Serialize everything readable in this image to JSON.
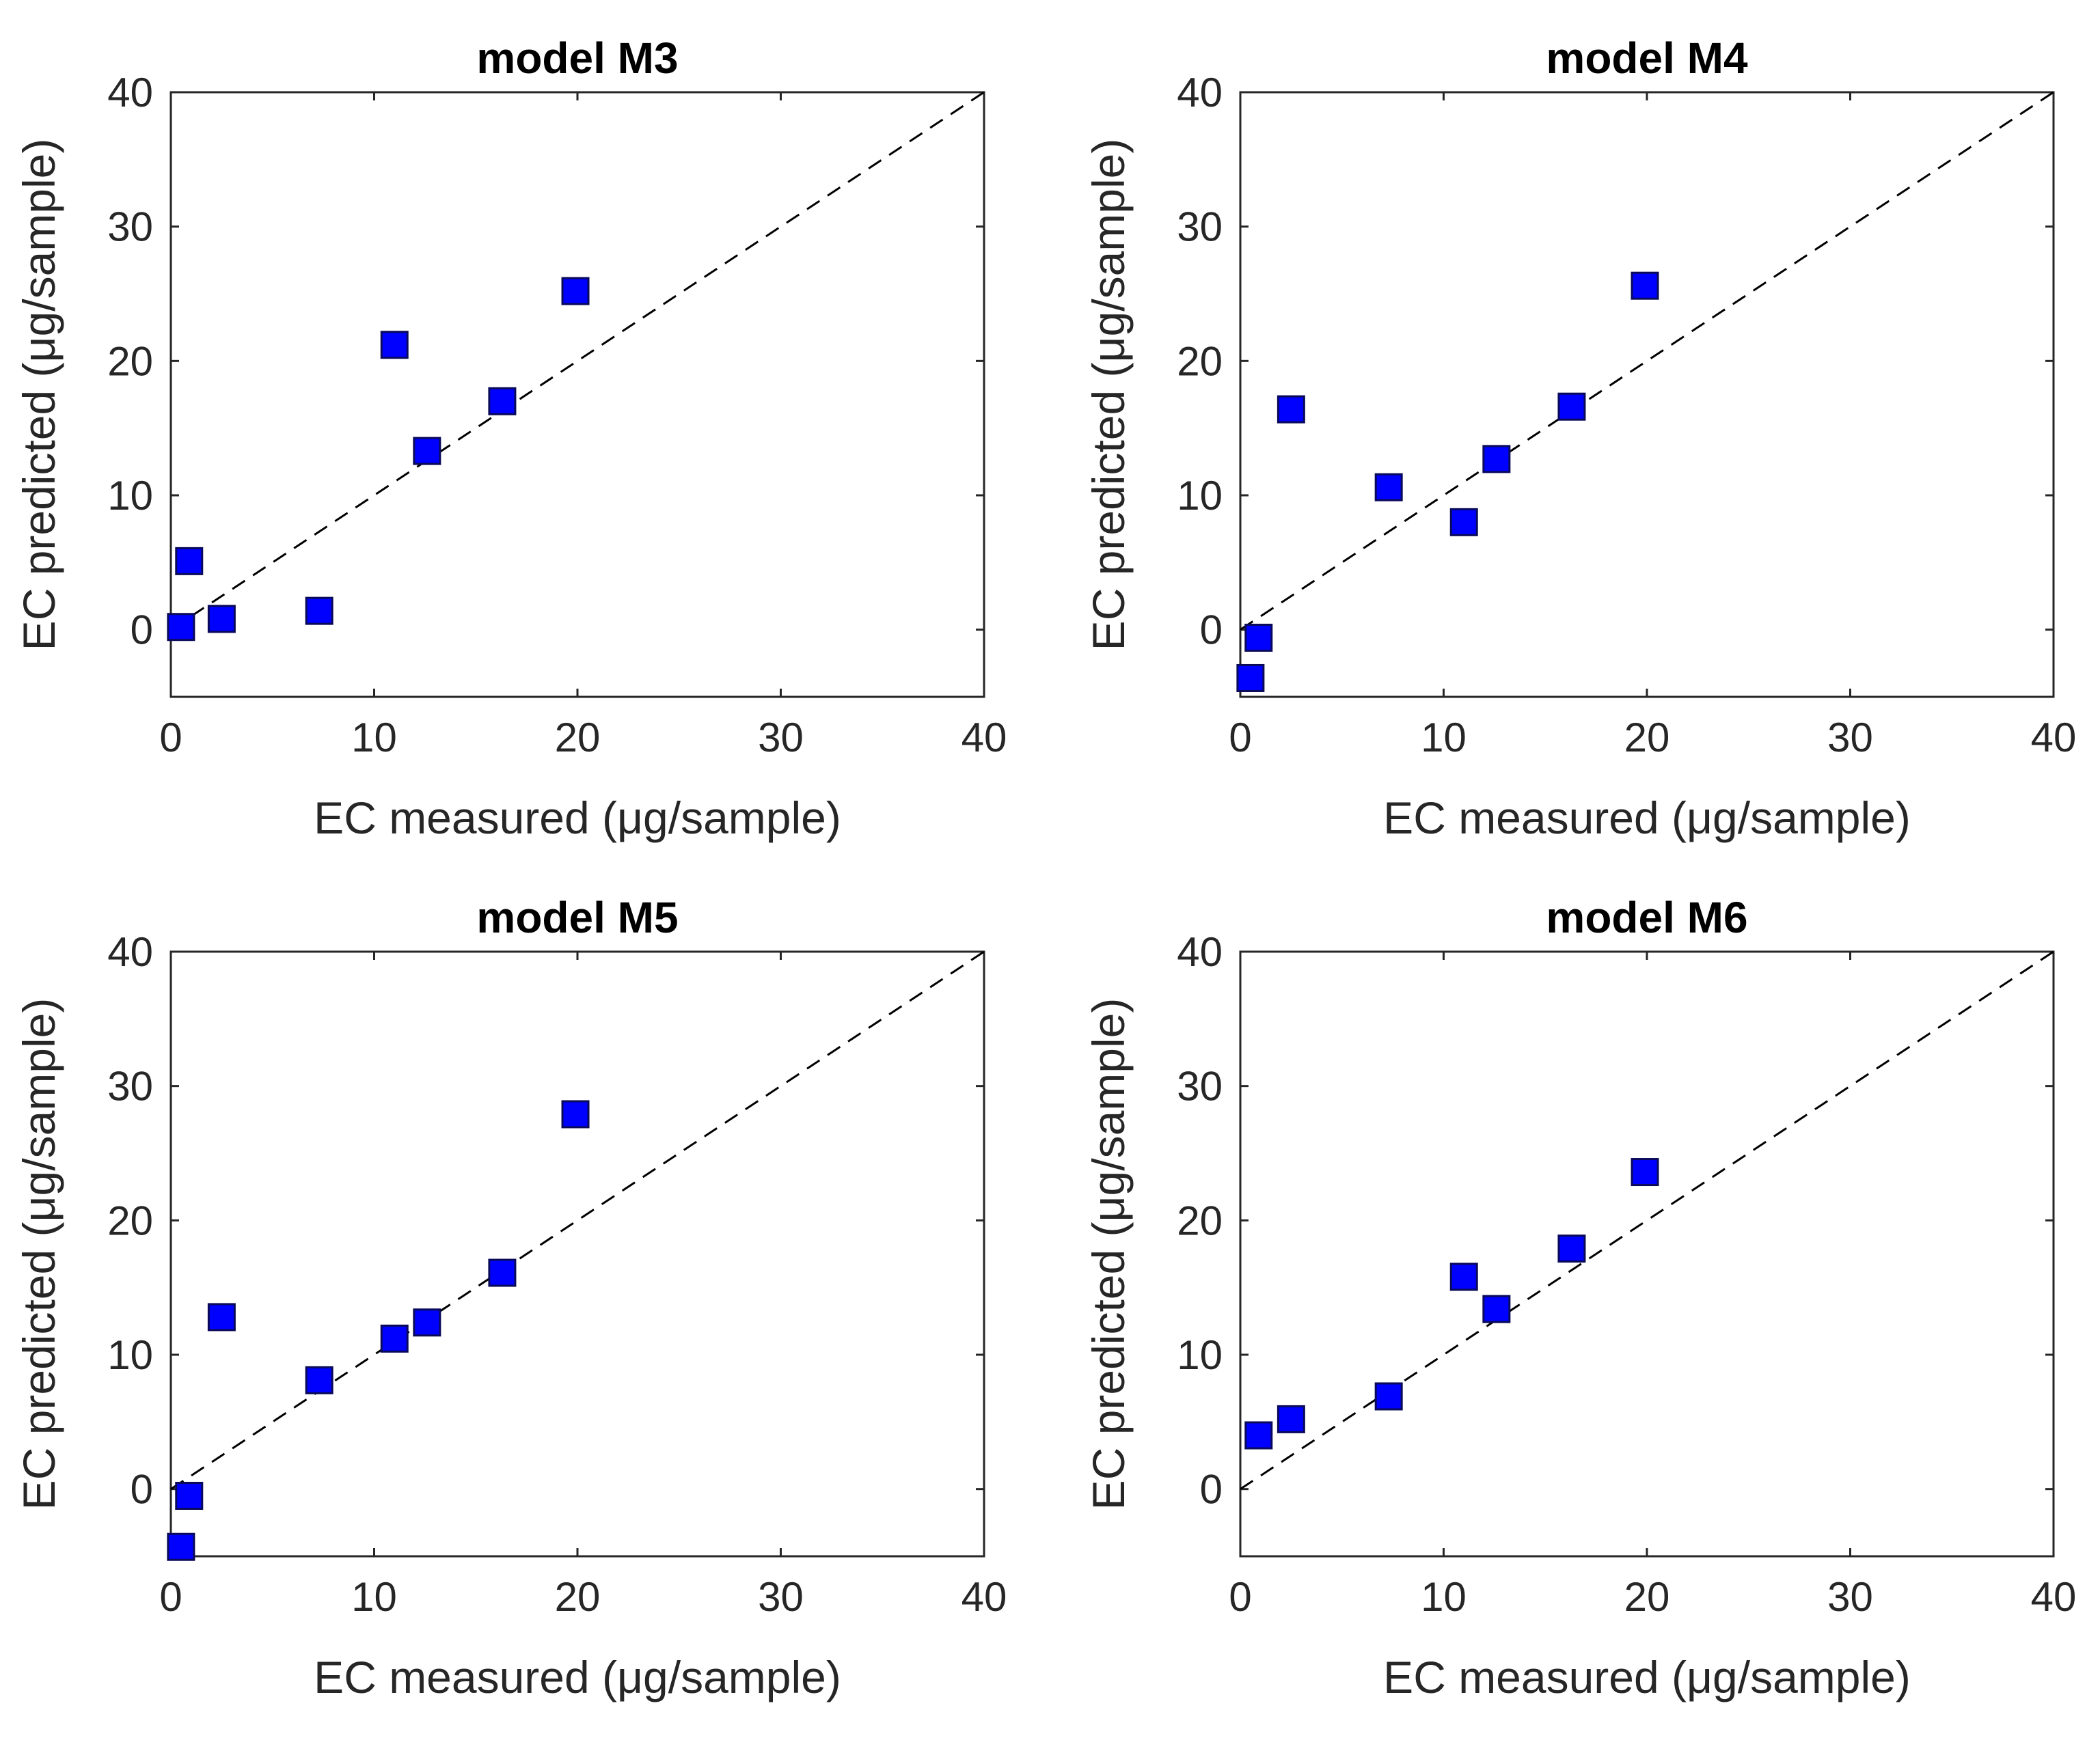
{
  "chart_data": [
    {
      "type": "scatter",
      "title": "model M3",
      "xlabel": "EC measured (μg/sample)",
      "ylabel": "EC predicted (μg/sample)",
      "xlim": [
        0,
        40
      ],
      "ylim": [
        -5,
        40
      ],
      "xticks": [
        "0",
        "10",
        "20",
        "30",
        "40"
      ],
      "yticks": [
        "0",
        "10",
        "20",
        "30",
        "40"
      ],
      "grid": false,
      "reference_line": "y = x",
      "points": [
        {
          "x": 0.5,
          "y": 0.2
        },
        {
          "x": 0.9,
          "y": 5.1
        },
        {
          "x": 2.5,
          "y": 0.8
        },
        {
          "x": 7.3,
          "y": 1.4
        },
        {
          "x": 11.0,
          "y": 21.2
        },
        {
          "x": 12.6,
          "y": 13.3
        },
        {
          "x": 16.3,
          "y": 17.0
        },
        {
          "x": 19.9,
          "y": 25.2
        }
      ]
    },
    {
      "type": "scatter",
      "title": "model M4",
      "xlabel": "EC measured (μg/sample)",
      "ylabel": "EC predicted (μg/sample)",
      "xlim": [
        0,
        40
      ],
      "ylim": [
        -5,
        40
      ],
      "xticks": [
        "0",
        "10",
        "20",
        "30",
        "40"
      ],
      "yticks": [
        "0",
        "10",
        "20",
        "30",
        "40"
      ],
      "grid": false,
      "reference_line": "y = x",
      "points": [
        {
          "x": 0.5,
          "y": -3.6
        },
        {
          "x": 0.9,
          "y": -0.6
        },
        {
          "x": 2.5,
          "y": 16.4
        },
        {
          "x": 7.3,
          "y": 10.6
        },
        {
          "x": 11.0,
          "y": 8.0
        },
        {
          "x": 12.6,
          "y": 12.7
        },
        {
          "x": 16.3,
          "y": 16.6
        },
        {
          "x": 19.9,
          "y": 25.6
        }
      ]
    },
    {
      "type": "scatter",
      "title": "model M5",
      "xlabel": "EC measured (μg/sample)",
      "ylabel": "EC predicted (μg/sample)",
      "xlim": [
        0,
        40
      ],
      "ylim": [
        -5,
        40
      ],
      "xticks": [
        "0",
        "10",
        "20",
        "30",
        "40"
      ],
      "yticks": [
        "0",
        "10",
        "20",
        "30",
        "40"
      ],
      "grid": false,
      "reference_line": "y = x",
      "points": [
        {
          "x": 0.5,
          "y": -4.3
        },
        {
          "x": 0.9,
          "y": -0.5
        },
        {
          "x": 2.5,
          "y": 12.8
        },
        {
          "x": 7.3,
          "y": 8.1
        },
        {
          "x": 11.0,
          "y": 11.2
        },
        {
          "x": 12.6,
          "y": 12.4
        },
        {
          "x": 16.3,
          "y": 16.1
        },
        {
          "x": 19.9,
          "y": 27.9
        }
      ]
    },
    {
      "type": "scatter",
      "title": "model M6",
      "xlabel": "EC measured (μg/sample)",
      "ylabel": "EC predicted (μg/sample)",
      "xlim": [
        0,
        40
      ],
      "ylim": [
        -5,
        40
      ],
      "xticks": [
        "0",
        "10",
        "20",
        "30",
        "40"
      ],
      "yticks": [
        "0",
        "10",
        "20",
        "30",
        "40"
      ],
      "grid": false,
      "reference_line": "y = x",
      "points": [
        {
          "x": 0.9,
          "y": 4.0
        },
        {
          "x": 2.5,
          "y": 5.2
        },
        {
          "x": 7.3,
          "y": 6.9
        },
        {
          "x": 11.0,
          "y": 15.8
        },
        {
          "x": 12.6,
          "y": 13.4
        },
        {
          "x": 16.3,
          "y": 17.9
        },
        {
          "x": 19.9,
          "y": 23.6
        }
      ]
    }
  ],
  "colors": {
    "marker_fill": "#0000ff",
    "marker_edge": "#0a0a5a",
    "reference_line": "#000000",
    "axes": "#262626"
  }
}
